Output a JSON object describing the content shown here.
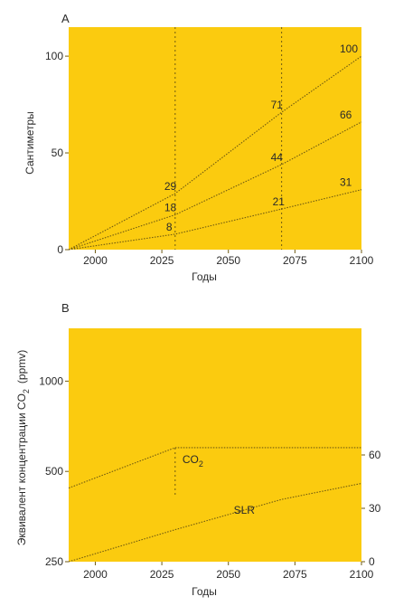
{
  "chart_data": [
    {
      "panel": "A",
      "type": "line",
      "xlabel": "Годы",
      "ylabel": "Сантиметры",
      "xlim": [
        1990,
        2100
      ],
      "ylim": [
        0,
        115
      ],
      "x_ticks": [
        "2000",
        "2025",
        "2050",
        "2075",
        "2100"
      ],
      "y_ticks": [
        "0",
        "50",
        "100"
      ],
      "vlines": [
        2030,
        2070
      ],
      "series": [
        {
          "x": [
            1990,
            2030,
            2070,
            2100
          ],
          "values": [
            0,
            29,
            71,
            100
          ],
          "labels": [
            "29",
            "71",
            "100"
          ]
        },
        {
          "x": [
            1990,
            2030,
            2070,
            2100
          ],
          "values": [
            0,
            18,
            44,
            66
          ],
          "labels": [
            "18",
            "44",
            "66"
          ]
        },
        {
          "x": [
            1990,
            2030,
            2070,
            2100
          ],
          "values": [
            0,
            8,
            21,
            31
          ],
          "labels": [
            "8",
            "21",
            "31"
          ]
        }
      ],
      "background": "#fbcb0f",
      "line_color": "#6f5a10"
    },
    {
      "panel": "B",
      "type": "line",
      "xlabel": "Годы",
      "ylabel_left": "Эквивалент концентрации CO",
      "ylabel_sub": "2",
      "ylabel_unit": "(ppmv)",
      "xlim": [
        1990,
        2100
      ],
      "y_left_ticks": [
        "250",
        "500",
        "1000"
      ],
      "y_right_ticks": [
        "0",
        "30",
        "60"
      ],
      "x_ticks": [
        "2000",
        "2025",
        "2050",
        "2075",
        "2100"
      ],
      "vlines": [
        2030
      ],
      "series": [
        {
          "name": "CO",
          "name_sub": "2",
          "axis": "left",
          "x": [
            1990,
            2030,
            2100
          ],
          "values": [
            440,
            600,
            600
          ]
        },
        {
          "name": "SLR",
          "axis": "right",
          "x": [
            1990,
            2030,
            2070,
            2100
          ],
          "values": [
            0,
            18,
            35,
            44
          ]
        }
      ],
      "background": "#fbcb0f",
      "line_color": "#6f5a10"
    }
  ]
}
